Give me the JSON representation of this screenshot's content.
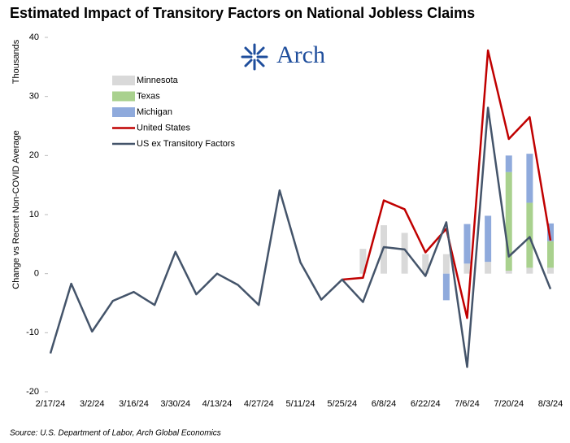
{
  "chart_data": {
    "type": "bar-line",
    "title": "Estimated Impact of Transitory Factors on National Jobless Claims",
    "logo": "Arch",
    "y_unit": "Thousands",
    "y_label": "Change vs Recent Non-COVID Average",
    "source": "Source: U.S. Department of Labor, Arch Global Economics",
    "categories": [
      "2/17/24",
      null,
      "3/2/24",
      null,
      "3/16/24",
      null,
      "3/30/24",
      null,
      "4/13/24",
      null,
      "4/27/24",
      null,
      "5/11/24",
      null,
      "5/25/24",
      null,
      "6/8/24",
      null,
      "6/22/24",
      null,
      "7/6/24",
      null,
      "7/20/24",
      null,
      "8/3/24"
    ],
    "ylim": [
      -20,
      40
    ],
    "yticks": [
      -20,
      -10,
      0,
      10,
      20,
      30,
      40
    ],
    "series": [
      {
        "name": "Minnesota",
        "kind": "bar",
        "color": "#d9d9d9",
        "values": [
          null,
          null,
          null,
          null,
          null,
          null,
          null,
          null,
          null,
          null,
          null,
          null,
          null,
          null,
          null,
          4.2,
          8.2,
          6.9,
          3.3,
          3.3,
          1.7,
          2.0,
          0.5,
          1.0,
          1.0
        ]
      },
      {
        "name": "Texas",
        "kind": "bar",
        "color": "#a9d18e",
        "values": [
          null,
          null,
          null,
          null,
          null,
          null,
          null,
          null,
          null,
          null,
          null,
          null,
          null,
          null,
          null,
          null,
          null,
          null,
          null,
          null,
          null,
          null,
          16.7,
          11.0,
          4.5
        ]
      },
      {
        "name": "Michigan",
        "kind": "bar",
        "color": "#8faadc",
        "values": [
          null,
          null,
          null,
          null,
          null,
          null,
          null,
          null,
          null,
          null,
          null,
          null,
          null,
          null,
          null,
          null,
          null,
          null,
          null,
          -4.5,
          6.7,
          7.8,
          2.8,
          8.3,
          3.0
        ]
      },
      {
        "name": "United States",
        "kind": "line",
        "color": "#c00000",
        "values": [
          null,
          null,
          null,
          null,
          null,
          null,
          null,
          null,
          null,
          null,
          null,
          null,
          null,
          null,
          -1.0,
          -0.7,
          12.4,
          10.9,
          3.6,
          7.6,
          -7.5,
          37.8,
          22.8,
          26.5,
          5.6
        ]
      },
      {
        "name": "US ex Transitory Factors",
        "kind": "line",
        "color": "#44546a",
        "values": [
          -13.5,
          -1.7,
          -9.8,
          -4.6,
          -3.1,
          -5.3,
          3.7,
          -3.5,
          0,
          -1.9,
          -5.3,
          14.1,
          1.9,
          -4.4,
          -1.0,
          -4.8,
          4.5,
          4.1,
          -0.4,
          8.7,
          -15.8,
          28.1,
          2.9,
          6.2,
          -2.6
        ]
      }
    ]
  }
}
